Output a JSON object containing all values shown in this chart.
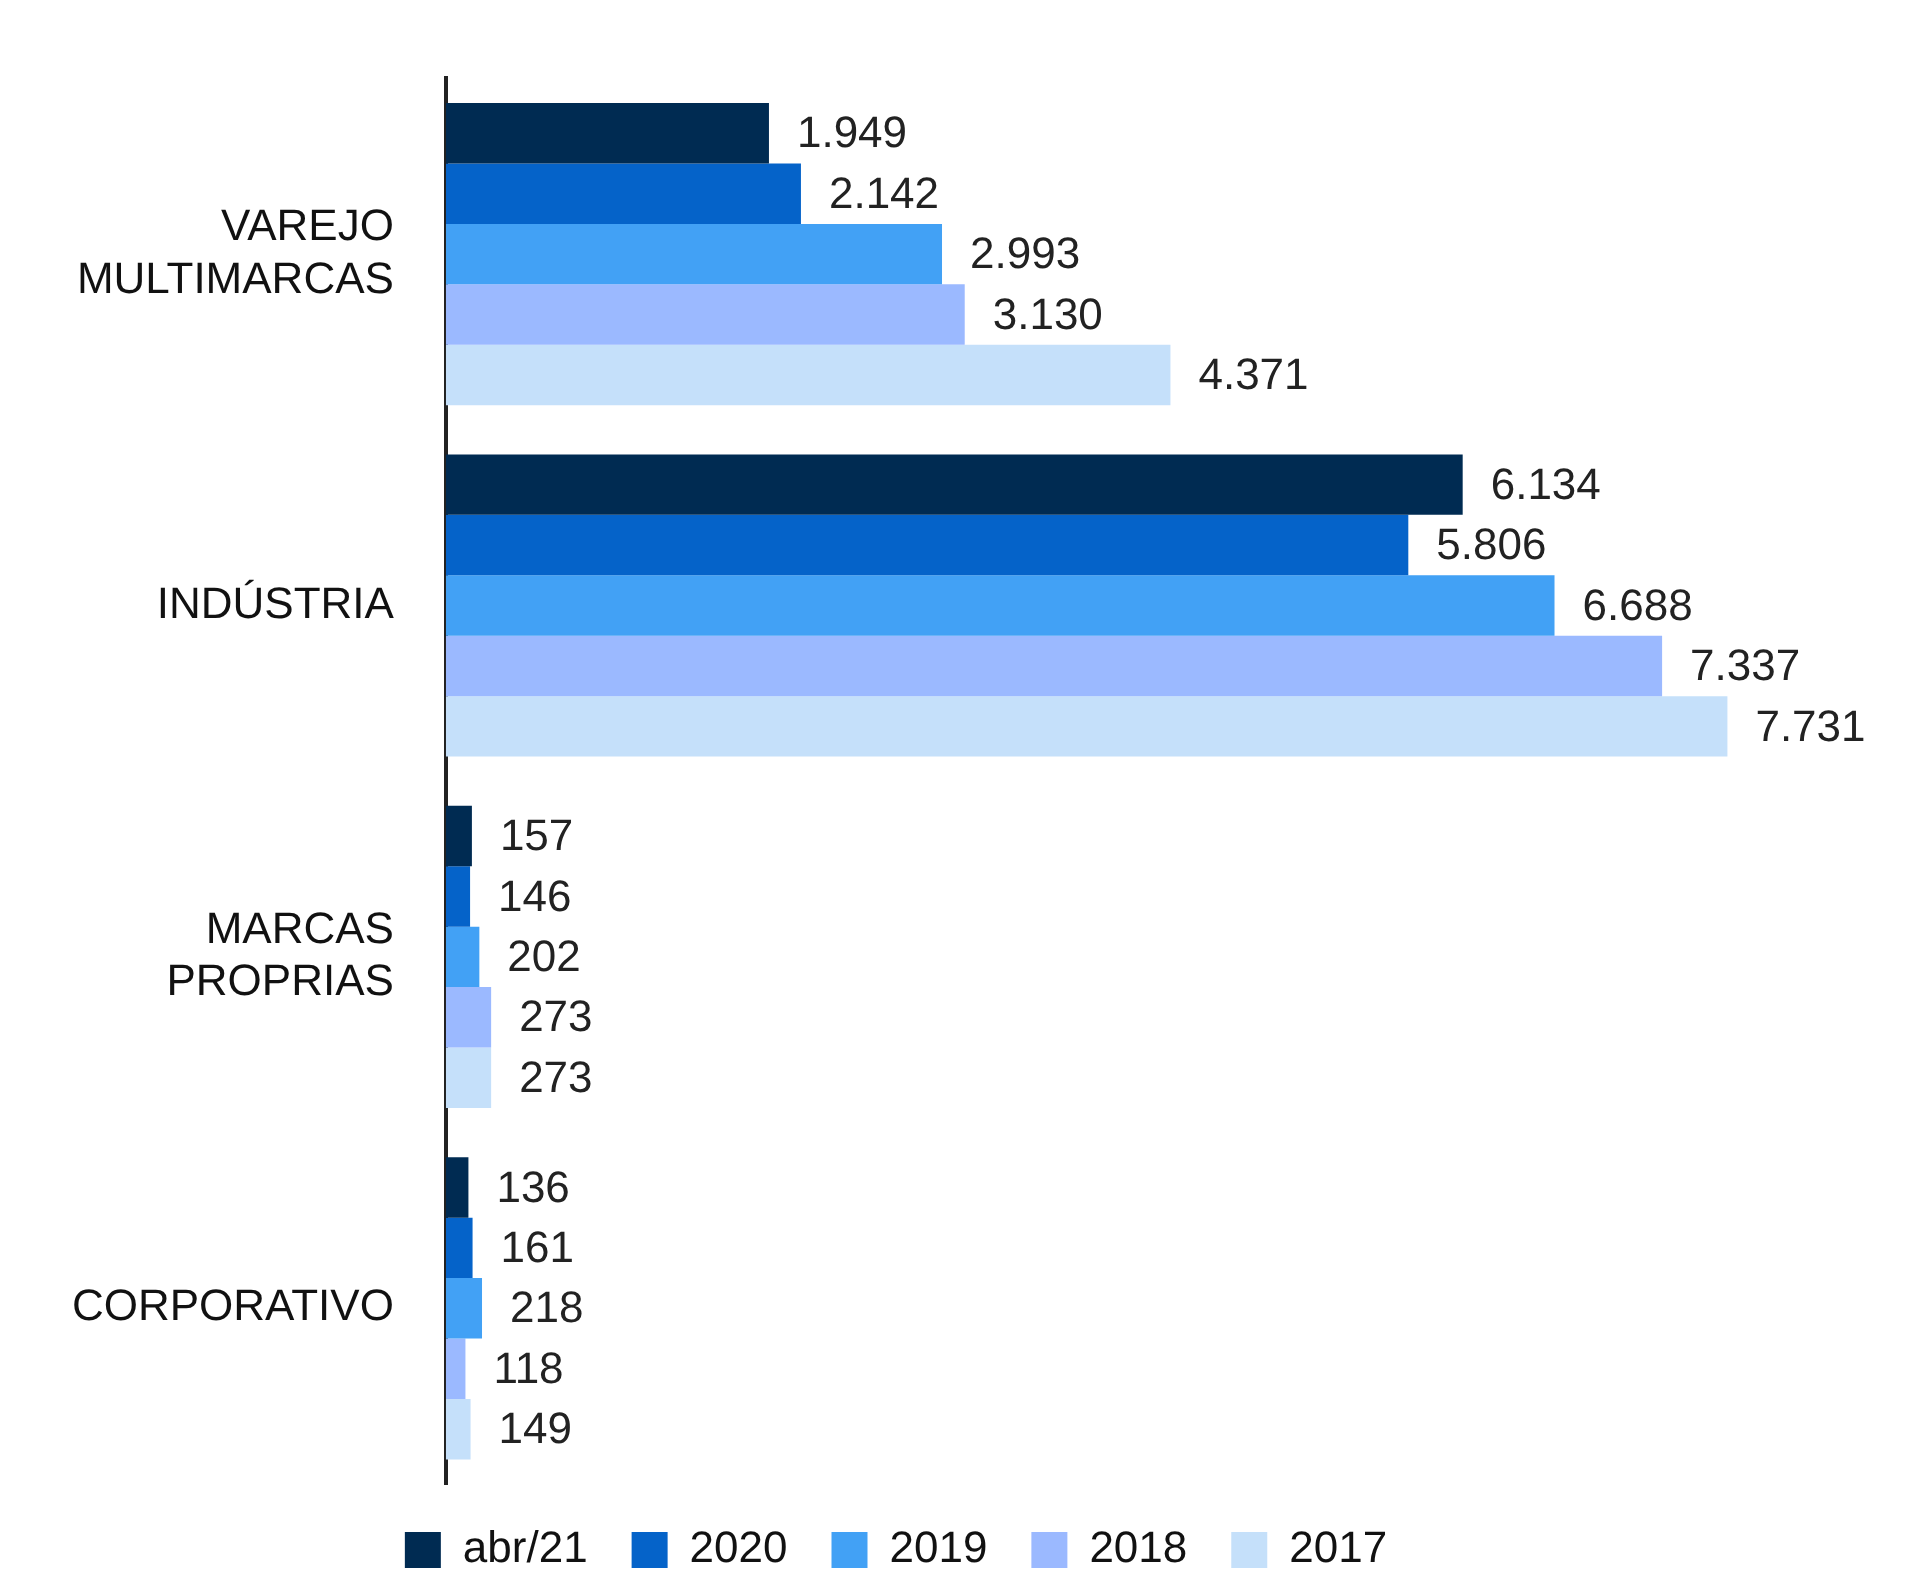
{
  "chart_data": {
    "type": "bar",
    "orientation": "horizontal",
    "categories": [
      "VAREJO MULTIMARCAS",
      "INDÚSTRIA",
      "MARCAS PROPRIAS",
      "CORPORATIVO"
    ],
    "series": [
      {
        "name": "abr/21",
        "color": "#002b52",
        "values": [
          1949,
          6134,
          157,
          136
        ],
        "value_labels": [
          "1.949",
          "6.134",
          "157",
          "136"
        ]
      },
      {
        "name": "2020",
        "color": "#0563c9",
        "values": [
          2142,
          5806,
          146,
          161
        ],
        "value_labels": [
          "2.142",
          "5.806",
          "146",
          "161"
        ]
      },
      {
        "name": "2019",
        "color": "#42a1f5",
        "values": [
          2993,
          6688,
          202,
          218
        ],
        "value_labels": [
          "2.993",
          "6.688",
          "202",
          "218"
        ]
      },
      {
        "name": "2018",
        "color": "#9bb9ff",
        "values": [
          3130,
          7337,
          273,
          118
        ],
        "value_labels": [
          "3.130",
          "7.337",
          "273",
          "118"
        ]
      },
      {
        "name": "2017",
        "color": "#c5e0fa",
        "values": [
          4371,
          7731,
          273,
          149
        ],
        "value_labels": [
          "4.371",
          "7.731",
          "273",
          "149"
        ]
      }
    ],
    "legend": "bottom"
  }
}
